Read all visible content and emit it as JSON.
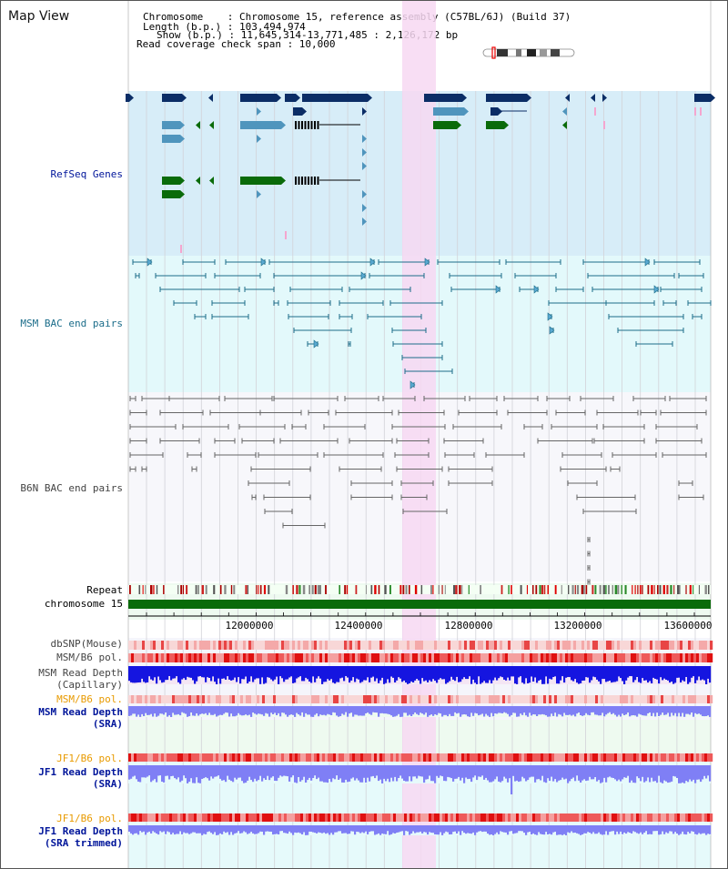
{
  "header": {
    "title": "Map View",
    "info_lines": [
      "Chromosome    : Chromosome 15, reference assembly (C57BL/6J) (Build 37)",
      "Length (b.p.) : 103,494,974",
      "Show (b.p.) : 11,645,314-13,771,485 : 2,126,172 bp",
      "Read coverage check span : 10,000"
    ]
  },
  "tracks": {
    "refseq": "RefSeq Genes",
    "msm_bac": "MSM BAC end pairs",
    "b6n_bac": "B6N BAC end pairs",
    "repeat": "Repeat",
    "chromosome": "chromosome 15",
    "dbsnp": "dbSNP(Mouse)",
    "msm_b6_pol_1": "MSM/B6 pol.",
    "msm_depth_cap_1": "MSM Read Depth",
    "msm_depth_cap_2": "(Capillary)",
    "msm_b6_pol_2": "MSM/B6 pol.",
    "msm_depth_sra_1": "MSM Read Depth",
    "msm_depth_sra_2": "(SRA)",
    "jf1_b6_pol_1": "JF1/B6 pol.",
    "jf1_depth_sra_1": "JF1 Read Depth",
    "jf1_depth_sra_2": "(SRA)",
    "jf1_b6_pol_2": "JF1/B6 pol.",
    "jf1_depth_trim_1": "JF1 Read Depth",
    "jf1_depth_trim_2": "(SRA trimmed)"
  },
  "axis": {
    "ticks": [
      "12000000",
      "12400000",
      "12800000",
      "13200000",
      "13600000"
    ]
  },
  "colors": {
    "refseq_bg": "#d7edf8",
    "msm_bg": "#e3f9fb",
    "b6n_bg": "#f7f7fb",
    "highlight": "#f7d8f2",
    "gene_dark": "#0b2d66",
    "gene_mid": "#4f95bd",
    "gene_green": "#0a6b0a",
    "msm_pair": "#1c6d8a",
    "b6n_pair": "#666666",
    "chromosome": "#0a6b0a",
    "depth_dark": "#1515e0",
    "depth_light": "#7f7ff5",
    "label_blue": "#00159a",
    "label_gray": "#444444",
    "label_orange": "#e89a00",
    "label_teal": "#1c6d8a"
  }
}
